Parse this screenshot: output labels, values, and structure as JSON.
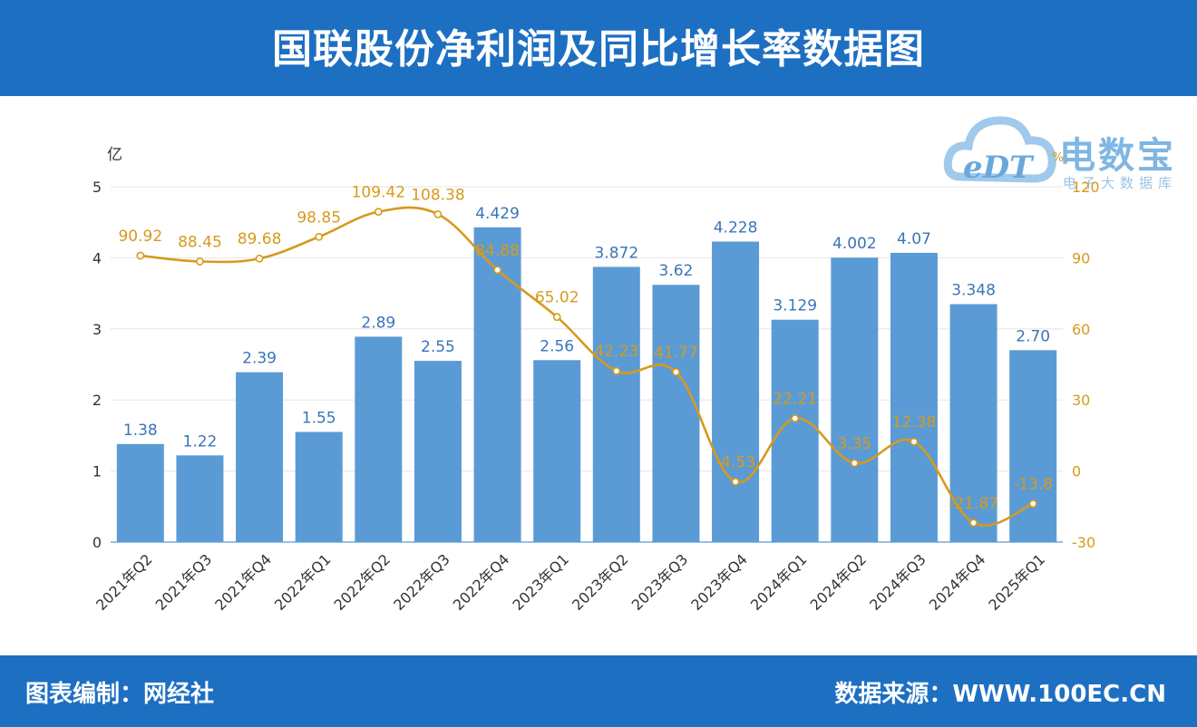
{
  "header": {
    "title": "国联股份净利润及同比增长率数据图"
  },
  "footer": {
    "left": "图表编制：网经社",
    "right": "数据来源：WWW.100EC.CN"
  },
  "logo": {
    "main": "电数宝",
    "sub": "电子大数据库",
    "edt": "eDT"
  },
  "chart_data": {
    "type": "bar",
    "categories": [
      "2021年Q2",
      "2021年Q3",
      "2021年Q4",
      "2022年Q1",
      "2022年Q2",
      "2022年Q3",
      "2022年Q4",
      "2023年Q1",
      "2023年Q2",
      "2023年Q3",
      "2023年Q4",
      "2024年Q1",
      "2024年Q2",
      "2024年Q3",
      "2024年Q4",
      "2025年Q1"
    ],
    "series": [
      {
        "kind": "bar",
        "axis": "left",
        "color": "#5b9bd5",
        "values": [
          1.38,
          1.22,
          2.39,
          1.55,
          2.89,
          2.55,
          4.429,
          2.56,
          3.872,
          3.62,
          4.228,
          3.129,
          4.002,
          4.07,
          3.348,
          2.7
        ],
        "labels": [
          "1.38",
          "1.22",
          "2.39",
          "1.55",
          "2.89",
          "2.55",
          "4.429",
          "2.56",
          "3.872",
          "3.62",
          "4.228",
          "3.129",
          "4.002",
          "4.07",
          "3.348",
          "2.70"
        ]
      },
      {
        "kind": "line",
        "axis": "right",
        "color": "#d79a1c",
        "values": [
          90.92,
          88.45,
          89.68,
          98.85,
          109.42,
          108.38,
          84.88,
          65.02,
          42.23,
          41.77,
          -4.53,
          22.21,
          3.35,
          12.38,
          -21.87,
          -13.8
        ],
        "labels": [
          "90.92",
          "88.45",
          "89.68",
          "98.85",
          "109.42",
          "108.38",
          "84.88",
          "65.02",
          "42.23",
          "41.77",
          "-4.53",
          "22.21",
          "3.35",
          "12.38",
          "-21.87",
          "-13.8"
        ]
      }
    ],
    "ylabel": "亿",
    "y2label": "%",
    "ylim": [
      0,
      5
    ],
    "yticks": [
      "0",
      "1",
      "2",
      "3",
      "4",
      "5"
    ],
    "y2lim": [
      -30,
      120
    ],
    "y2ticks": [
      "-30",
      "0",
      "30",
      "60",
      "90",
      "120"
    ],
    "grid": true
  }
}
